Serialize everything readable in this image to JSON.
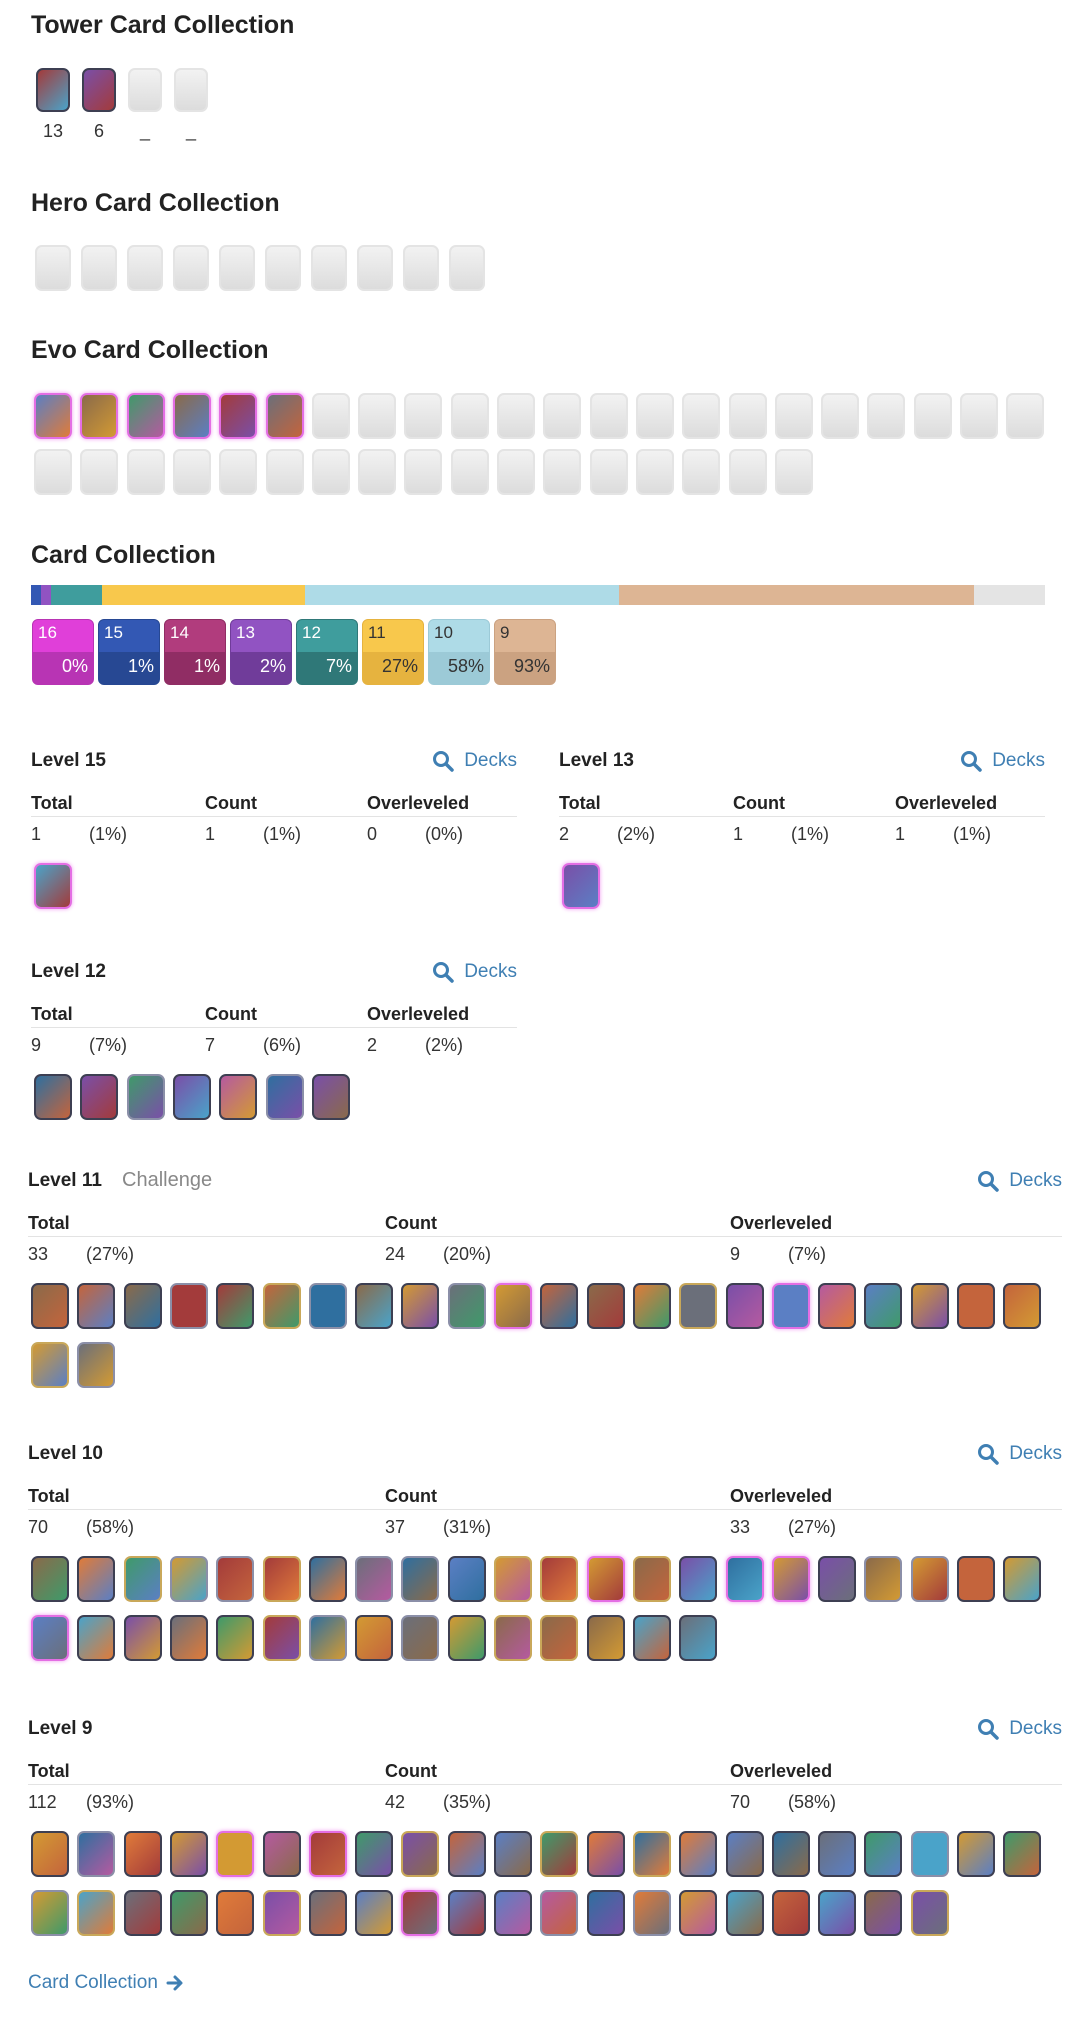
{
  "tower": {
    "title": "Tower Card Collection",
    "counts": [
      13,
      6,
      "_",
      "_"
    ]
  },
  "hero": {
    "title": "Hero Card Collection"
  },
  "evo": {
    "title": "Evo Card Collection"
  },
  "collection": {
    "title": "Card Collection",
    "levels": [
      {
        "level": 16,
        "pct": 0,
        "label": "0%",
        "color": "#e03fd9",
        "dark": "#b834b4"
      },
      {
        "level": 15,
        "pct": 1,
        "label": "1%",
        "color": "#3358b4",
        "dark": "#274893"
      },
      {
        "level": 14,
        "pct": 1,
        "label": "1%",
        "color": "#b13c7d",
        "dark": "#902d64"
      },
      {
        "level": 13,
        "pct": 2,
        "label": "2%",
        "color": "#9153c2",
        "dark": "#703c9a"
      },
      {
        "level": 12,
        "pct": 7,
        "label": "7%",
        "color": "#3f9d9d",
        "dark": "#2f7878"
      },
      {
        "level": 11,
        "pct": 27,
        "label": "27%",
        "color": "#f8c84c",
        "dark": "#e6b33f"
      },
      {
        "level": 10,
        "pct": 58,
        "label": "58%",
        "color": "#aedbe7",
        "dark": "#9ccad7"
      },
      {
        "level": 9,
        "pct": 93,
        "label": "93%",
        "color": "#ddb594",
        "dark": "#cba281"
      }
    ]
  },
  "sections": [
    {
      "title": "Level 15",
      "decks": "Decks",
      "headers": [
        "Total",
        "Count",
        "Overleveled"
      ],
      "stats": [
        {
          "n": 1,
          "pct": "(1%)"
        },
        {
          "n": 1,
          "pct": "(1%)"
        },
        {
          "n": 0,
          "pct": "(0%)"
        }
      ]
    },
    {
      "title": "Level 13",
      "decks": "Decks",
      "headers": [
        "Total",
        "Count",
        "Overleveled"
      ],
      "stats": [
        {
          "n": 2,
          "pct": "(2%)"
        },
        {
          "n": 1,
          "pct": "(1%)"
        },
        {
          "n": 1,
          "pct": "(1%)"
        }
      ]
    },
    {
      "title": "Level 12",
      "decks": "Decks",
      "headers": [
        "Total",
        "Count",
        "Overleveled"
      ],
      "stats": [
        {
          "n": 9,
          "pct": "(7%)"
        },
        {
          "n": 7,
          "pct": "(6%)"
        },
        {
          "n": 2,
          "pct": "(2%)"
        }
      ]
    },
    {
      "title": "Level 11",
      "note": "Challenge",
      "decks": "Decks",
      "headers": [
        "Total",
        "Count",
        "Overleveled"
      ],
      "stats": [
        {
          "n": 33,
          "pct": "(27%)"
        },
        {
          "n": 24,
          "pct": "(20%)"
        },
        {
          "n": 9,
          "pct": "(7%)"
        }
      ]
    },
    {
      "title": "Level 10",
      "decks": "Decks",
      "headers": [
        "Total",
        "Count",
        "Overleveled"
      ],
      "stats": [
        {
          "n": 70,
          "pct": "(58%)"
        },
        {
          "n": 37,
          "pct": "(31%)"
        },
        {
          "n": 33,
          "pct": "(27%)"
        }
      ]
    },
    {
      "title": "Level 9",
      "decks": "Decks",
      "headers": [
        "Total",
        "Count",
        "Overleveled"
      ],
      "stats": [
        {
          "n": 112,
          "pct": "(93%)"
        },
        {
          "n": 42,
          "pct": "(35%)"
        },
        {
          "n": 70,
          "pct": "(58%)"
        }
      ]
    }
  ],
  "footer": {
    "link": "Card Collection"
  }
}
